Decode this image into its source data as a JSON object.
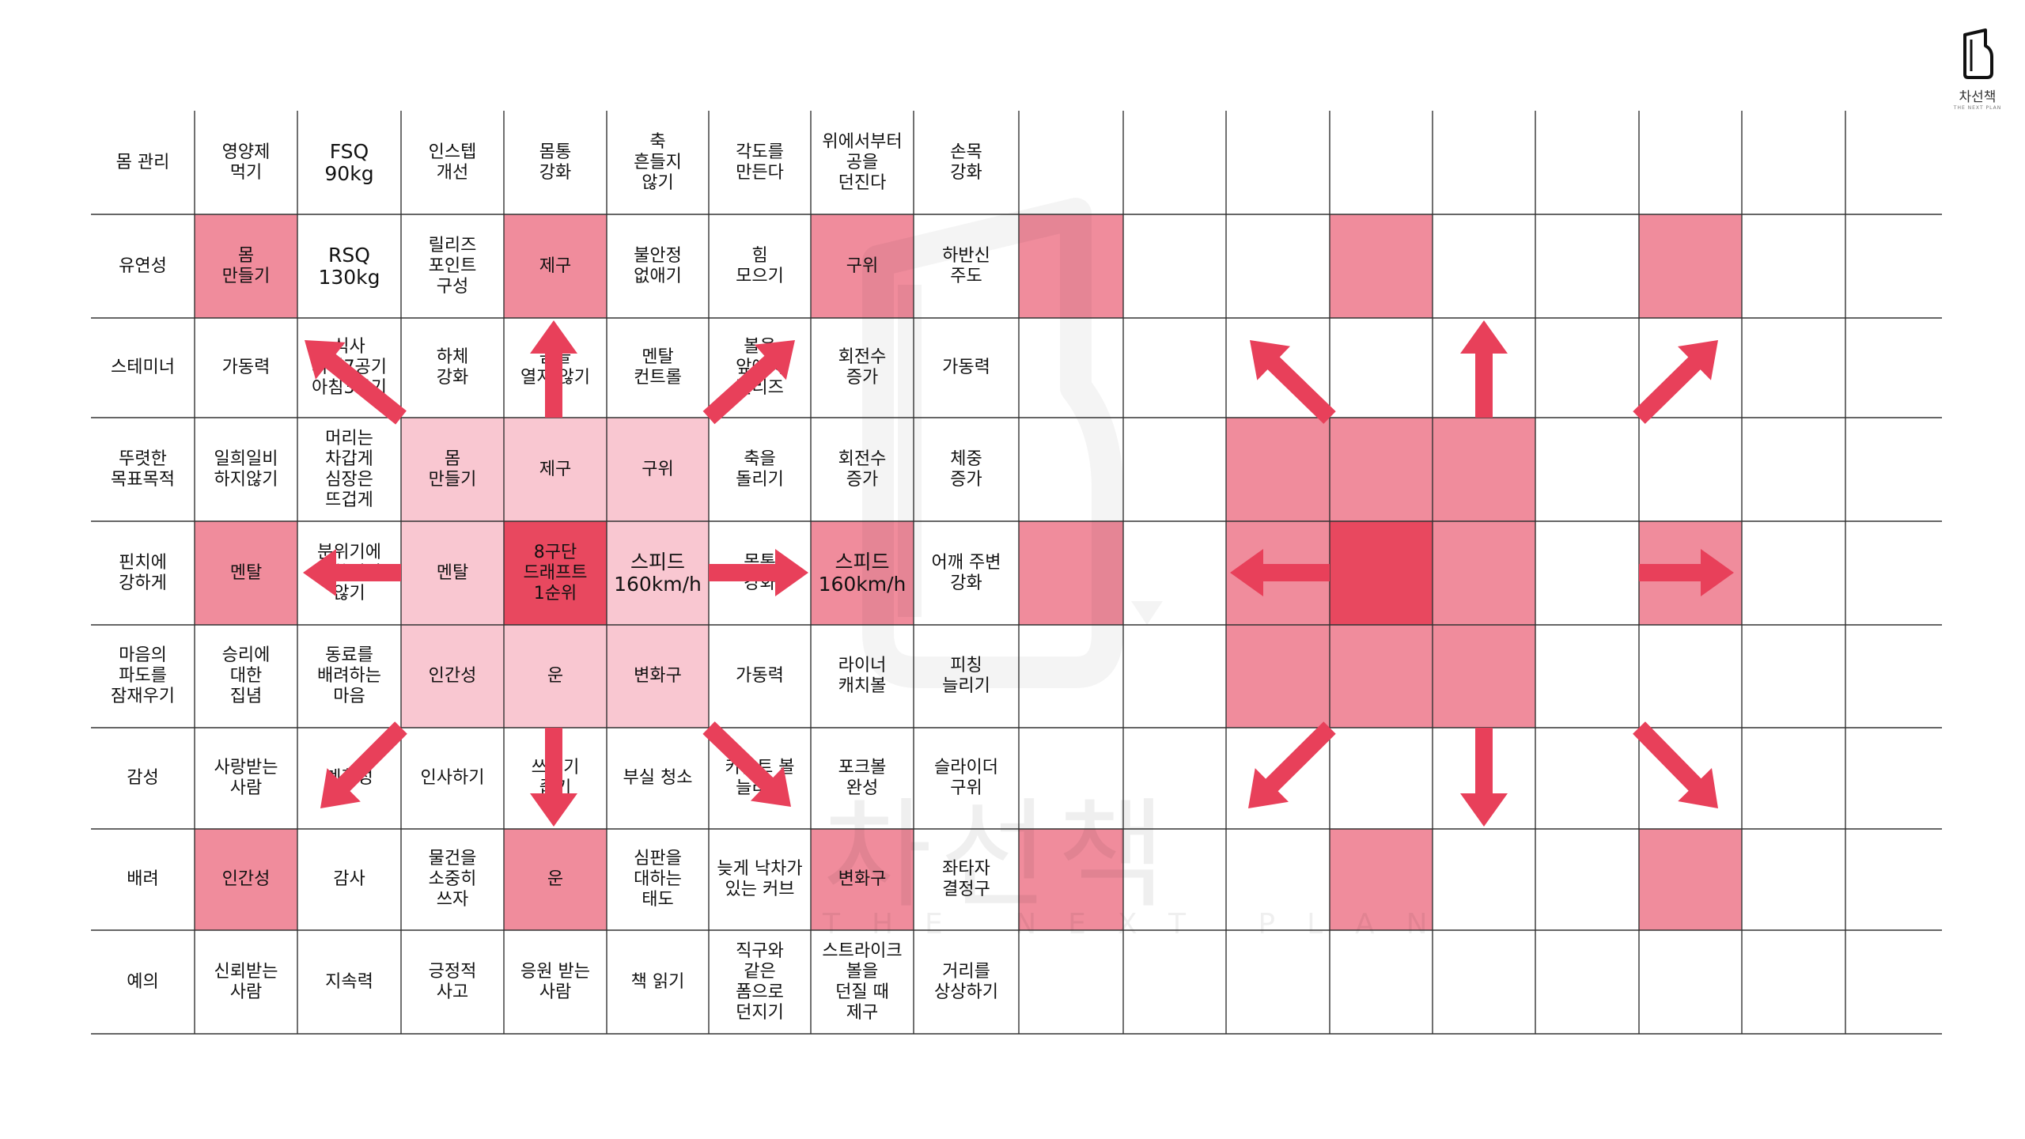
{
  "brand": {
    "name": "차선책",
    "tagline": "THE NEXT PLAN",
    "watermark_text": "차선책",
    "watermark_sub": "THE NEXT PLAN"
  },
  "colors": {
    "strong": "#f08c9c",
    "light": "#f9c7d1",
    "core": "#e8485f",
    "arrow": "#e8405a",
    "grid_line": "#333333"
  },
  "mandalart": {
    "rows": [
      [
        "몸 관리",
        "영양제\n먹기",
        "FSQ\n90kg",
        "인스텝\n개선",
        "몸통\n강화",
        "축\n흔들지\n않기",
        "각도를\n만든다",
        "위에서부터\n공을\n던진다",
        "손목\n강화"
      ],
      [
        "유연성",
        "몸\n만들기",
        "RSQ\n130kg",
        "릴리즈\n포인트\n구성",
        "제구",
        "불안정\n없애기",
        "힘\n모으기",
        "구위",
        "하반신\n주도"
      ],
      [
        "스테미너",
        "가동력",
        "식사\n저녁7공기\n아침3공기",
        "하체\n강화",
        "몸을\n열지 않기",
        "멘탈\n컨트롤",
        "볼을\n앞에서\n릴리즈",
        "회전수\n증가",
        "가동력"
      ],
      [
        "뚜렷한\n목표목적",
        "일희일비\n하지않기",
        "머리는\n차갑게\n심장은\n뜨겁게",
        "몸\n만들기",
        "제구",
        "구위",
        "축을\n돌리기",
        "회전수\n증가",
        "체중\n증가"
      ],
      [
        "핀치에\n강하게",
        "멘탈",
        "분위기에\n휩쓸리지\n않기",
        "멘탈",
        "8구단\n드래프트\n1순위",
        "스피드\n160km/h",
        "몸통\n강화",
        "스피드\n160km/h",
        "어깨 주변\n강화"
      ],
      [
        "마음의\n파도를\n잠재우기",
        "승리에\n대한\n집념",
        "동료를\n배려하는\n마음",
        "인간성",
        "운",
        "변화구",
        "가동력",
        "라이너\n캐치볼",
        "피칭\n늘리기"
      ],
      [
        "감성",
        "사랑받는\n사람",
        "계획성",
        "인사하기",
        "쓰레기\n줍기",
        "부실 청소",
        "카운트 볼\n늘리기",
        "포크볼\n완성",
        "슬라이더\n구위"
      ],
      [
        "배려",
        "인간성",
        "감사",
        "물건을\n소중히\n쓰자",
        "운",
        "심판을\n대하는\n태도",
        "늦게 낙차가\n있는 커브",
        "변화구",
        "좌타자\n결정구"
      ],
      [
        "예의",
        "신뢰받는\n사람",
        "지속력",
        "긍정적\n사고",
        "응원 받는\n사람",
        "책 읽기",
        "직구와\n같은\n폼으로\n던지기",
        "스트라이크\n볼을\n던질 때\n제구",
        "거리를\n상상하기"
      ]
    ],
    "right_grid_cells": 81
  }
}
